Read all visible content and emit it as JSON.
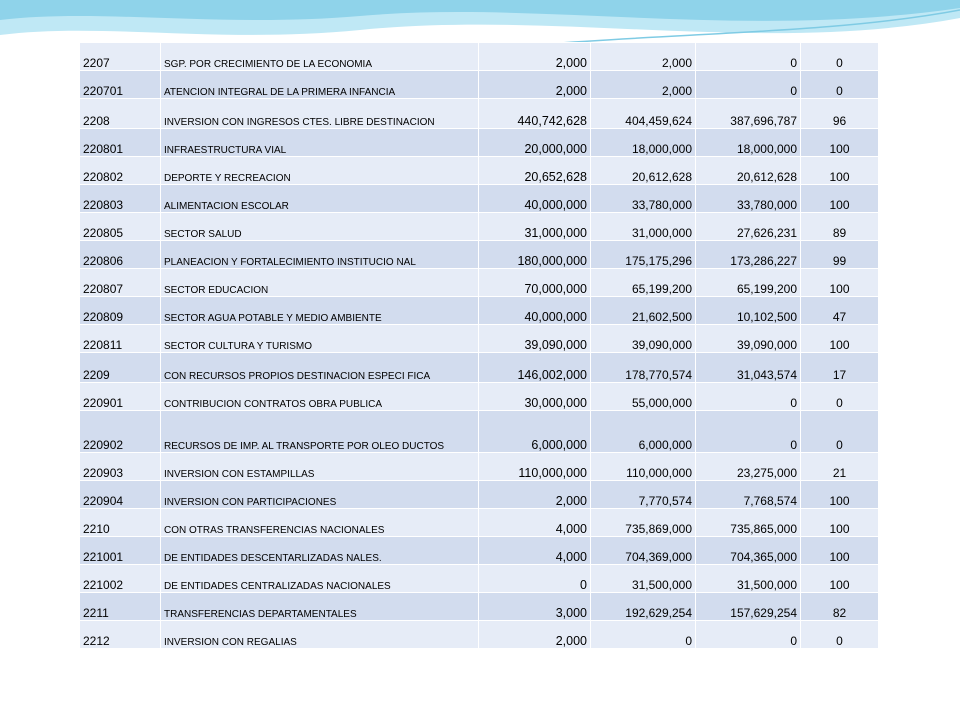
{
  "theme": {
    "wave_color": "#9ad9ee",
    "band_a": "#e6ecf7",
    "band_b": "#d2dcee"
  },
  "rows": [
    {
      "code": "2207",
      "desc": "SGP. POR CRECIMIENTO DE LA ECONOMIA",
      "v1": "2,000",
      "v2": "2,000",
      "v3": "0",
      "pct": "0"
    },
    {
      "code": "220701",
      "desc": "ATENCION INTEGRAL DE LA PRIMERA INFANCIA",
      "v1": "2,000",
      "v2": "2,000",
      "v3": "0",
      "pct": "0"
    },
    {
      "code": "2208",
      "desc": "INVERSION CON INGRESOS CTES. LIBRE DESTINACION",
      "v1": "440,742,628",
      "v2": "404,459,624",
      "v3": "387,696,787",
      "pct": "96"
    },
    {
      "code": "220801",
      "desc": "INFRAESTRUCTURA VIAL",
      "v1": "20,000,000",
      "v2": "18,000,000",
      "v3": "18,000,000",
      "pct": "100"
    },
    {
      "code": "220802",
      "desc": "DEPORTE Y RECREACION",
      "v1": "20,652,628",
      "v2": "20,612,628",
      "v3": "20,612,628",
      "pct": "100"
    },
    {
      "code": "220803",
      "desc": "ALIMENTACION ESCOLAR",
      "v1": "40,000,000",
      "v2": "33,780,000",
      "v3": "33,780,000",
      "pct": "100"
    },
    {
      "code": "220805",
      "desc": "SECTOR SALUD",
      "v1": "31,000,000",
      "v2": "31,000,000",
      "v3": "27,626,231",
      "pct": "89"
    },
    {
      "code": "220806",
      "desc": "PLANEACION Y FORTALECIMIENTO INSTITUCIO NAL",
      "v1": "180,000,000",
      "v2": "175,175,296",
      "v3": "173,286,227",
      "pct": "99"
    },
    {
      "code": "220807",
      "desc": "SECTOR EDUCACION",
      "v1": "70,000,000",
      "v2": "65,199,200",
      "v3": "65,199,200",
      "pct": "100"
    },
    {
      "code": "220809",
      "desc": "SECTOR AGUA POTABLE Y MEDIO AMBIENTE",
      "v1": "40,000,000",
      "v2": "21,602,500",
      "v3": "10,102,500",
      "pct": "47"
    },
    {
      "code": "220811",
      "desc": "SECTOR CULTURA Y TURISMO",
      "v1": "39,090,000",
      "v2": "39,090,000",
      "v3": "39,090,000",
      "pct": "100"
    },
    {
      "code": "2209",
      "desc": "CON RECURSOS PROPIOS DESTINACION ESPECI FICA",
      "v1": "146,002,000",
      "v2": "178,770,574",
      "v3": "31,043,574",
      "pct": "17"
    },
    {
      "code": "220901",
      "desc": "CONTRIBUCION CONTRATOS OBRA PUBLICA",
      "v1": "30,000,000",
      "v2": "55,000,000",
      "v3": "0",
      "pct": "0"
    },
    {
      "code": "220902",
      "desc": "RECURSOS DE IMP. AL TRANSPORTE POR OLEO DUCTOS",
      "v1": "6,000,000",
      "v2": "6,000,000",
      "v3": "0",
      "pct": "0"
    },
    {
      "code": "220903",
      "desc": "INVERSION CON ESTAMPILLAS",
      "v1": "110,000,000",
      "v2": "110,000,000",
      "v3": "23,275,000",
      "pct": "21"
    },
    {
      "code": "220904",
      "desc": "INVERSION CON PARTICIPACIONES",
      "v1": "2,000",
      "v2": "7,770,574",
      "v3": "7,768,574",
      "pct": "100"
    },
    {
      "code": "2210",
      "desc": "CON OTRAS TRANSFERENCIAS NACIONALES",
      "v1": "4,000",
      "v2": "735,869,000",
      "v3": "735,865,000",
      "pct": "100"
    },
    {
      "code": "221001",
      "desc": "DE ENTIDADES DESCENTARLIZADAS NALES.",
      "v1": "4,000",
      "v2": "704,369,000",
      "v3": "704,365,000",
      "pct": "100"
    },
    {
      "code": "221002",
      "desc": "DE ENTIDADES CENTRALIZADAS NACIONALES",
      "v1": "0",
      "v2": "31,500,000",
      "v3": "31,500,000",
      "pct": "100"
    },
    {
      "code": "2211",
      "desc": "TRANSFERENCIAS DEPARTAMENTALES",
      "v1": "3,000",
      "v2": "192,629,254",
      "v3": "157,629,254",
      "pct": "82"
    },
    {
      "code": "2212",
      "desc": "INVERSION CON REGALIAS",
      "v1": "2,000",
      "v2": "0",
      "v3": "0",
      "pct": "0"
    }
  ]
}
